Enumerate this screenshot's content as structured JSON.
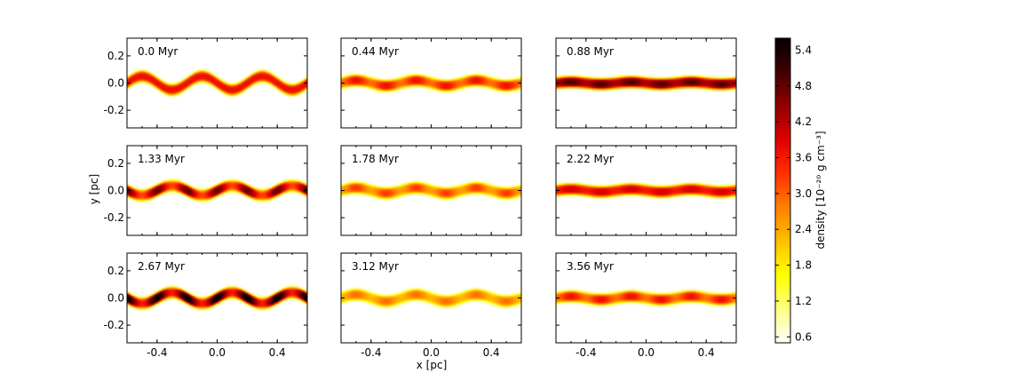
{
  "chart_data": {
    "type": "heatmap",
    "layout": "3x3 small multiples",
    "xlabel": "x [pc]",
    "ylabel": "y [pc]",
    "xlim": [
      -0.6,
      0.6
    ],
    "ylim": [
      -0.33,
      0.33
    ],
    "xticks": [
      -0.4,
      0.0,
      0.4
    ],
    "xtick_labels": [
      "-0.4",
      "0.0",
      "0.4"
    ],
    "yticks": [
      0.2,
      0.0,
      -0.2
    ],
    "ytick_labels": [
      "0.2",
      "0.0",
      "-0.2"
    ],
    "colorbar": {
      "label": "density [10⁻²⁰ g cm⁻³]",
      "range": [
        0.5,
        5.6
      ],
      "ticks": [
        5.4,
        4.8,
        4.2,
        3.6,
        3.0,
        2.4,
        1.8,
        1.2,
        0.6
      ],
      "tick_labels": [
        "5.4",
        "4.8",
        "4.2",
        "3.6",
        "3.0",
        "2.4",
        "1.8",
        "1.2",
        "0.6"
      ],
      "colormap": "hot_r",
      "colors": [
        "#ffffff",
        "#ffff80",
        "#ffff00",
        "#ffc000",
        "#ff8000",
        "#ff3000",
        "#e00000",
        "#900000",
        "#400000",
        "#000000"
      ]
    },
    "panels": [
      {
        "label": "0.0 Myr",
        "time_myr": 0.0,
        "amplitude": 0.05,
        "phase": 0.5,
        "density_mean": 3.7,
        "density_var": 0.0
      },
      {
        "label": "0.44 Myr",
        "time_myr": 0.44,
        "amplitude": 0.02,
        "phase": 0.5,
        "density_mean": 3.3,
        "density_var": 0.4
      },
      {
        "label": "0.88 Myr",
        "time_myr": 0.88,
        "amplitude": 0.008,
        "phase": 0.5,
        "density_mean": 4.6,
        "density_var": 0.3
      },
      {
        "label": "1.33 Myr",
        "time_myr": 1.33,
        "amplitude": 0.035,
        "phase": 0.0,
        "density_mean": 4.0,
        "density_var": 0.8
      },
      {
        "label": "1.78 Myr",
        "time_myr": 1.78,
        "amplitude": 0.02,
        "phase": 0.5,
        "density_mean": 2.9,
        "density_var": 0.4
      },
      {
        "label": "2.22 Myr",
        "time_myr": 2.22,
        "amplitude": 0.01,
        "phase": 0.5,
        "density_mean": 3.8,
        "density_var": 0.2
      },
      {
        "label": "2.67 Myr",
        "time_myr": 2.67,
        "amplitude": 0.04,
        "phase": 0.0,
        "density_mean": 4.6,
        "density_var": 1.0
      },
      {
        "label": "3.12 Myr",
        "time_myr": 3.12,
        "amplitude": 0.025,
        "phase": 0.5,
        "density_mean": 2.6,
        "density_var": 0.3
      },
      {
        "label": "3.56 Myr",
        "time_myr": 3.56,
        "amplitude": 0.012,
        "phase": 0.5,
        "density_mean": 3.3,
        "density_var": 0.4
      }
    ]
  }
}
